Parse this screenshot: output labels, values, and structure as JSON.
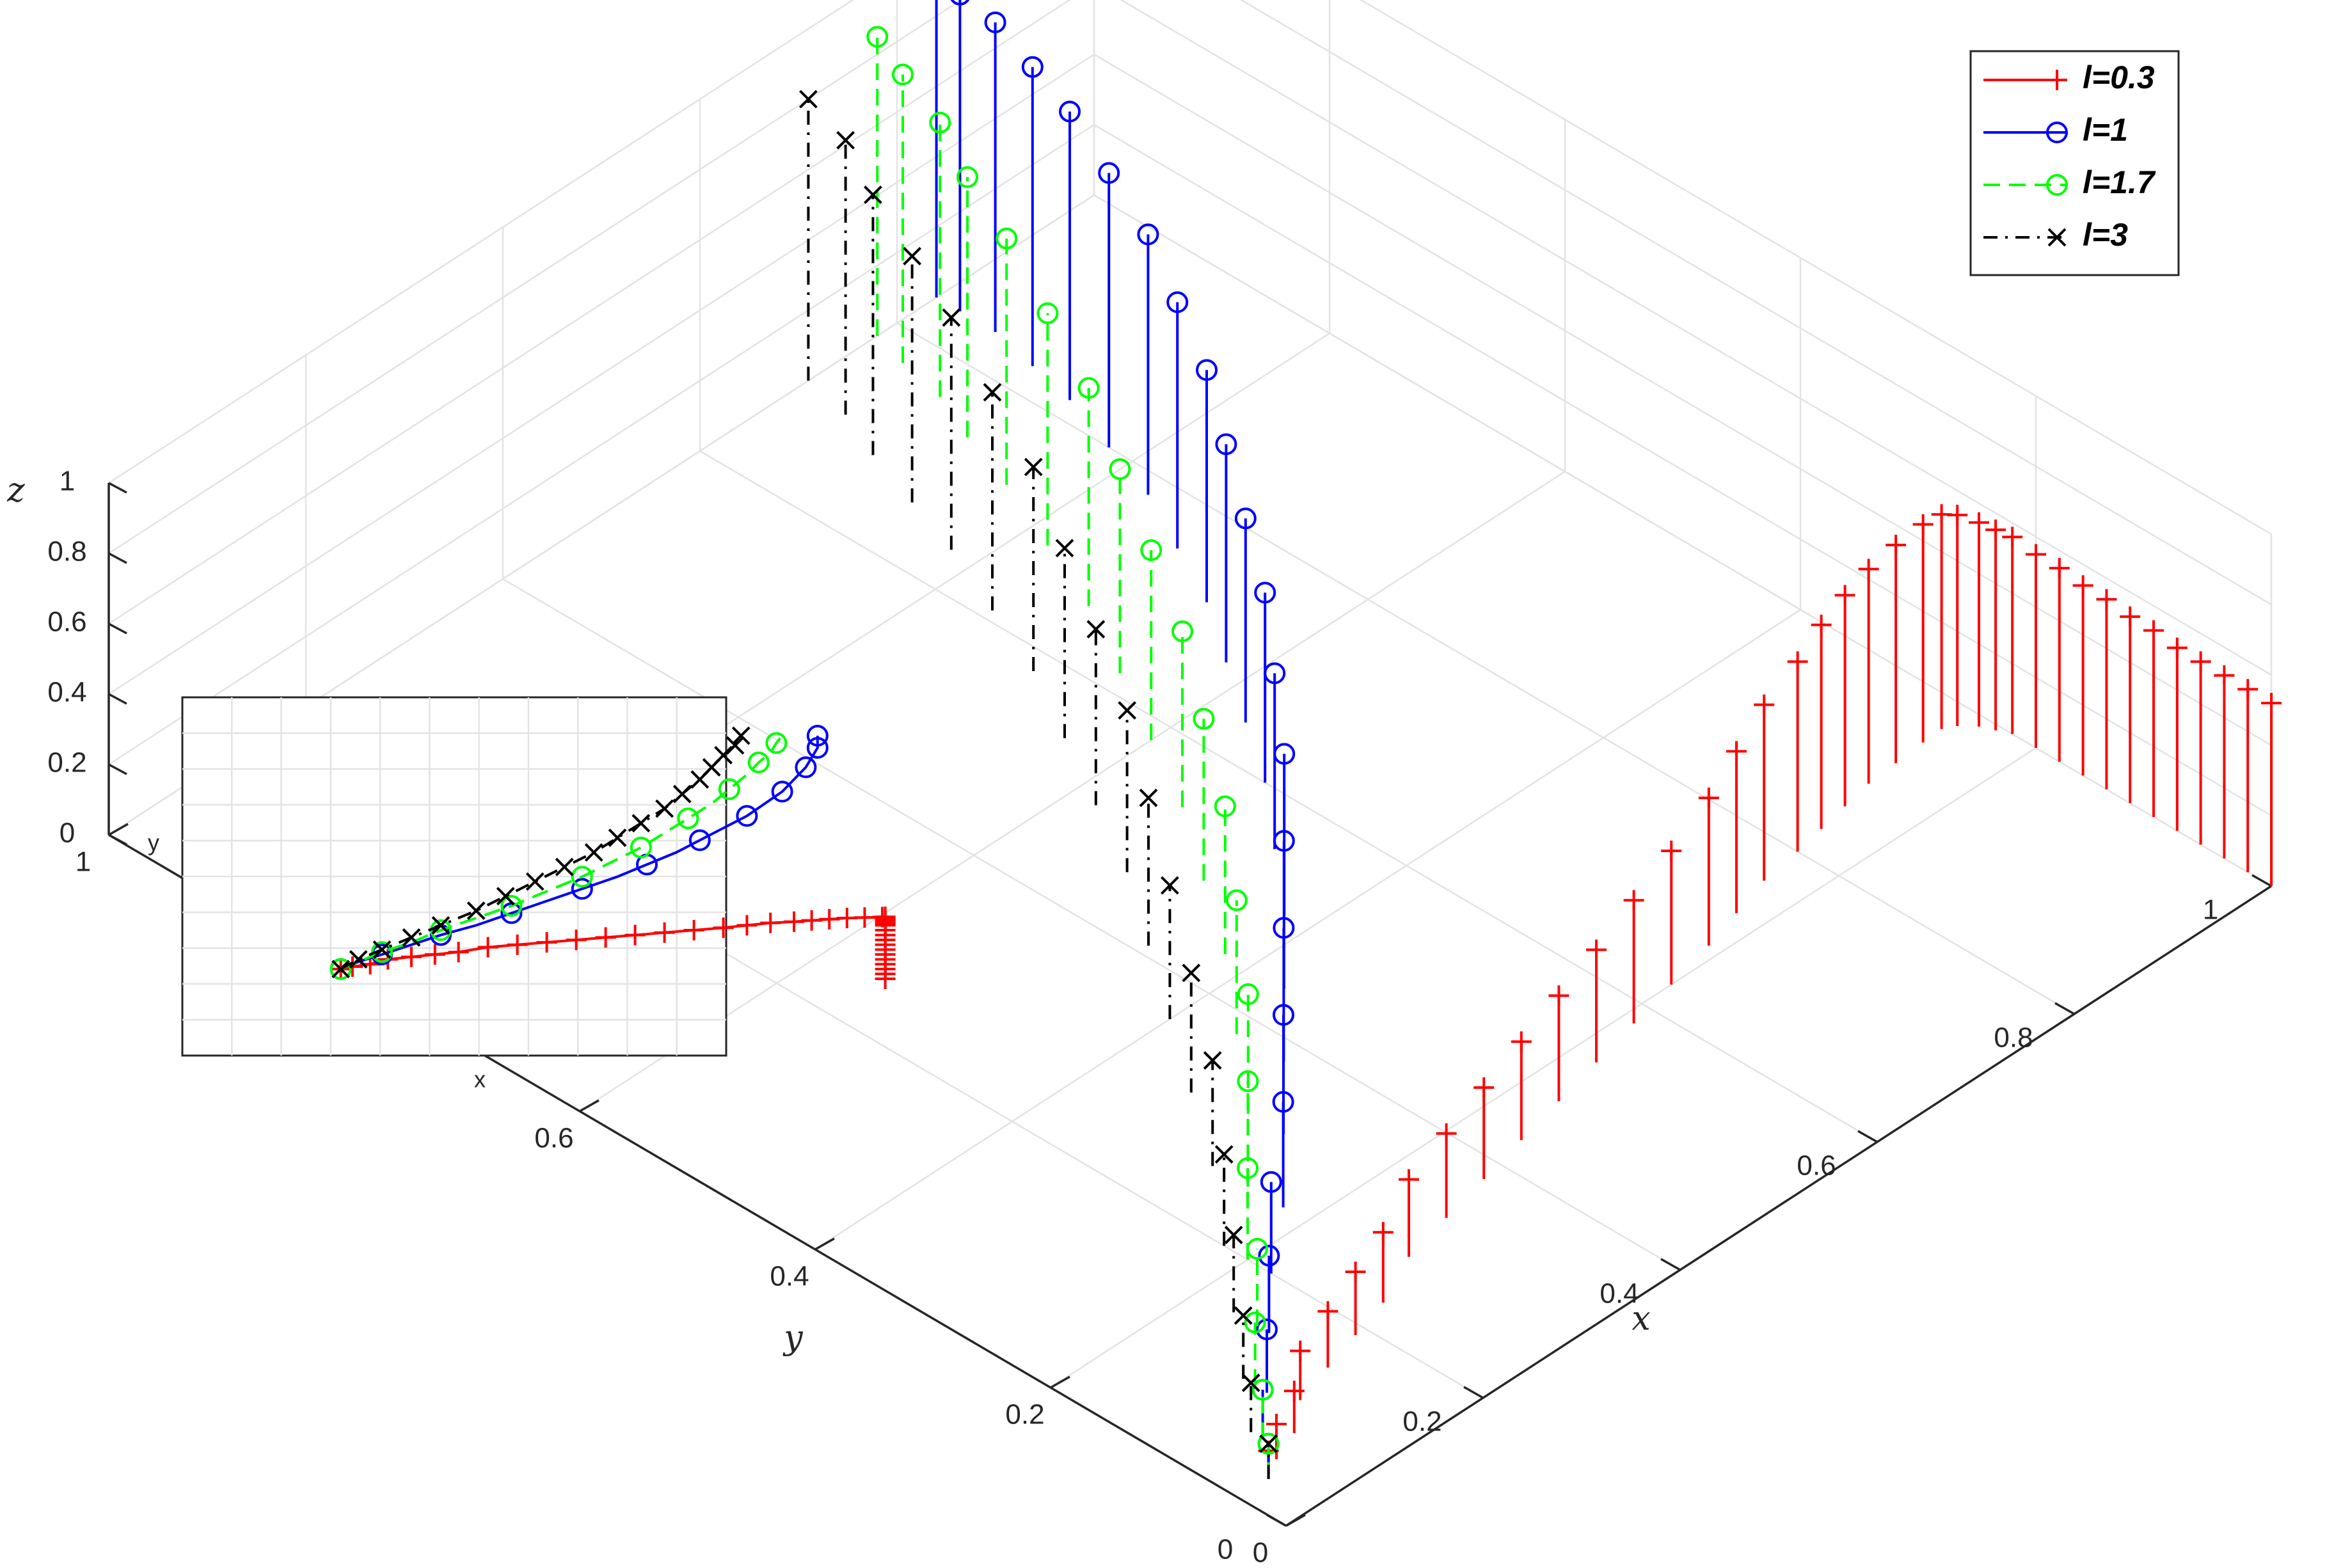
{
  "chart_data": [
    {
      "type": "line",
      "subtype": "3d-stem",
      "title": "",
      "xlabel": "x",
      "ylabel": "y",
      "zlabel": "z",
      "xlim": [
        0,
        1
      ],
      "ylim": [
        0,
        1
      ],
      "zlim": [
        0,
        1
      ],
      "x_ticks": [
        "0",
        "0.2",
        "0.4",
        "0.6",
        "0.8",
        "1"
      ],
      "y_ticks": [
        "0",
        "0.2",
        "0.4",
        "0.6",
        "0.8",
        "1"
      ],
      "z_ticks": [
        "0",
        "0.2",
        "0.4",
        "0.6",
        "0.8",
        "1"
      ],
      "grid": true,
      "legend_position": "top-right",
      "series": [
        {
          "name": "l=0.3",
          "color": "#ff0000",
          "line_style": "solid",
          "marker": "+",
          "points": [
            [
              0.03,
              0.04,
              0.08
            ],
            [
              0.05,
              0.05,
              0.1
            ],
            [
              0.08,
              0.06,
              0.12
            ],
            [
              0.11,
              0.08,
              0.14
            ],
            [
              0.15,
              0.09,
              0.16
            ],
            [
              0.19,
              0.1,
              0.18
            ],
            [
              0.23,
              0.11,
              0.2
            ],
            [
              0.28,
              0.13,
              0.22
            ],
            [
              0.33,
              0.14,
              0.24
            ],
            [
              0.38,
              0.15,
              0.26
            ],
            [
              0.43,
              0.16,
              0.28
            ],
            [
              0.48,
              0.17,
              0.3
            ],
            [
              0.53,
              0.18,
              0.32
            ],
            [
              0.58,
              0.19,
              0.35
            ],
            [
              0.63,
              0.2,
              0.38
            ],
            [
              0.68,
              0.21,
              0.42
            ],
            [
              0.72,
              0.22,
              0.46
            ],
            [
              0.76,
              0.23,
              0.5
            ],
            [
              0.8,
              0.235,
              0.54
            ],
            [
              0.83,
              0.24,
              0.58
            ],
            [
              0.86,
              0.245,
              0.6
            ],
            [
              0.89,
              0.25,
              0.61
            ],
            [
              0.92,
              0.252,
              0.62
            ],
            [
              0.95,
              0.254,
              0.62
            ],
            [
              0.97,
              0.255,
              0.61
            ],
            [
              0.98,
              0.25,
              0.6
            ],
            [
              0.99,
              0.24,
              0.58
            ],
            [
              0.995,
              0.23,
              0.57
            ],
            [
              1.0,
              0.22,
              0.56
            ],
            [
              1.0,
              0.2,
              0.55
            ],
            [
              1.0,
              0.18,
              0.55
            ],
            [
              1.0,
              0.16,
              0.54
            ],
            [
              1.0,
              0.14,
              0.54
            ],
            [
              1.0,
              0.12,
              0.53
            ],
            [
              1.0,
              0.1,
              0.53
            ],
            [
              1.0,
              0.08,
              0.52
            ],
            [
              1.0,
              0.06,
              0.52
            ],
            [
              1.0,
              0.04,
              0.52
            ],
            [
              1.0,
              0.02,
              0.52
            ],
            [
              1.0,
              0.0,
              0.52
            ]
          ]
        },
        {
          "name": "l=1",
          "color": "#0000ff",
          "line_style": "solid",
          "marker": "o",
          "points": [
            [
              0.03,
              0.04,
              0.1
            ],
            [
              0.06,
              0.07,
              0.14
            ],
            [
              0.1,
              0.1,
              0.18
            ],
            [
              0.15,
              0.14,
              0.22
            ],
            [
              0.2,
              0.18,
              0.26
            ],
            [
              0.26,
              0.22,
              0.3
            ],
            [
              0.32,
              0.27,
              0.34
            ],
            [
              0.38,
              0.32,
              0.38
            ],
            [
              0.44,
              0.37,
              0.42
            ],
            [
              0.5,
              0.42,
              0.46
            ],
            [
              0.55,
              0.47,
              0.5
            ],
            [
              0.6,
              0.52,
              0.54
            ],
            [
              0.64,
              0.57,
              0.58
            ],
            [
              0.68,
              0.62,
              0.62
            ],
            [
              0.72,
              0.67,
              0.66
            ],
            [
              0.75,
              0.72,
              0.7
            ],
            [
              0.78,
              0.77,
              0.74
            ],
            [
              0.8,
              0.82,
              0.78
            ],
            [
              0.82,
              0.87,
              0.82
            ],
            [
              0.83,
              0.91,
              0.85
            ],
            [
              0.84,
              0.95,
              0.88
            ],
            [
              0.84,
              0.98,
              0.9
            ],
            [
              0.84,
              1.0,
              0.92
            ]
          ]
        },
        {
          "name": "l=1.7",
          "color": "#00ff00",
          "line_style": "dashed",
          "marker": "o",
          "points": [
            [
              0.03,
              0.04,
              0.1
            ],
            [
              0.06,
              0.07,
              0.14
            ],
            [
              0.1,
              0.11,
              0.18
            ],
            [
              0.15,
              0.15,
              0.22
            ],
            [
              0.2,
              0.2,
              0.26
            ],
            [
              0.26,
              0.25,
              0.3
            ],
            [
              0.32,
              0.3,
              0.34
            ],
            [
              0.38,
              0.36,
              0.38
            ],
            [
              0.44,
              0.42,
              0.42
            ],
            [
              0.49,
              0.48,
              0.46
            ],
            [
              0.54,
              0.54,
              0.5
            ],
            [
              0.58,
              0.6,
              0.54
            ],
            [
              0.62,
              0.66,
              0.58
            ],
            [
              0.66,
              0.72,
              0.62
            ],
            [
              0.69,
              0.78,
              0.66
            ],
            [
              0.72,
              0.84,
              0.7
            ],
            [
              0.74,
              0.89,
              0.74
            ],
            [
              0.76,
              0.93,
              0.78
            ],
            [
              0.77,
              0.97,
              0.82
            ],
            [
              0.78,
              1.0,
              0.85
            ]
          ]
        },
        {
          "name": "l=3",
          "color": "#000000",
          "line_style": "dashdot",
          "marker": "x",
          "points": [
            [
              0.03,
              0.04,
              0.1
            ],
            [
              0.06,
              0.08,
              0.14
            ],
            [
              0.1,
              0.12,
              0.18
            ],
            [
              0.15,
              0.17,
              0.22
            ],
            [
              0.2,
              0.22,
              0.26
            ],
            [
              0.26,
              0.28,
              0.3
            ],
            [
              0.31,
              0.34,
              0.34
            ],
            [
              0.36,
              0.4,
              0.38
            ],
            [
              0.41,
              0.46,
              0.42
            ],
            [
              0.46,
              0.52,
              0.46
            ],
            [
              0.5,
              0.58,
              0.5
            ],
            [
              0.54,
              0.64,
              0.54
            ],
            [
              0.58,
              0.7,
              0.58
            ],
            [
              0.61,
              0.76,
              0.62
            ],
            [
              0.64,
              0.82,
              0.66
            ],
            [
              0.66,
              0.87,
              0.7
            ],
            [
              0.68,
              0.92,
              0.74
            ],
            [
              0.7,
              0.96,
              0.78
            ],
            [
              0.71,
              1.0,
              0.8
            ]
          ]
        }
      ]
    },
    {
      "type": "line",
      "subtype": "inset-xy-projection",
      "xlabel": "x",
      "ylabel": "y",
      "grid": true
    }
  ]
}
